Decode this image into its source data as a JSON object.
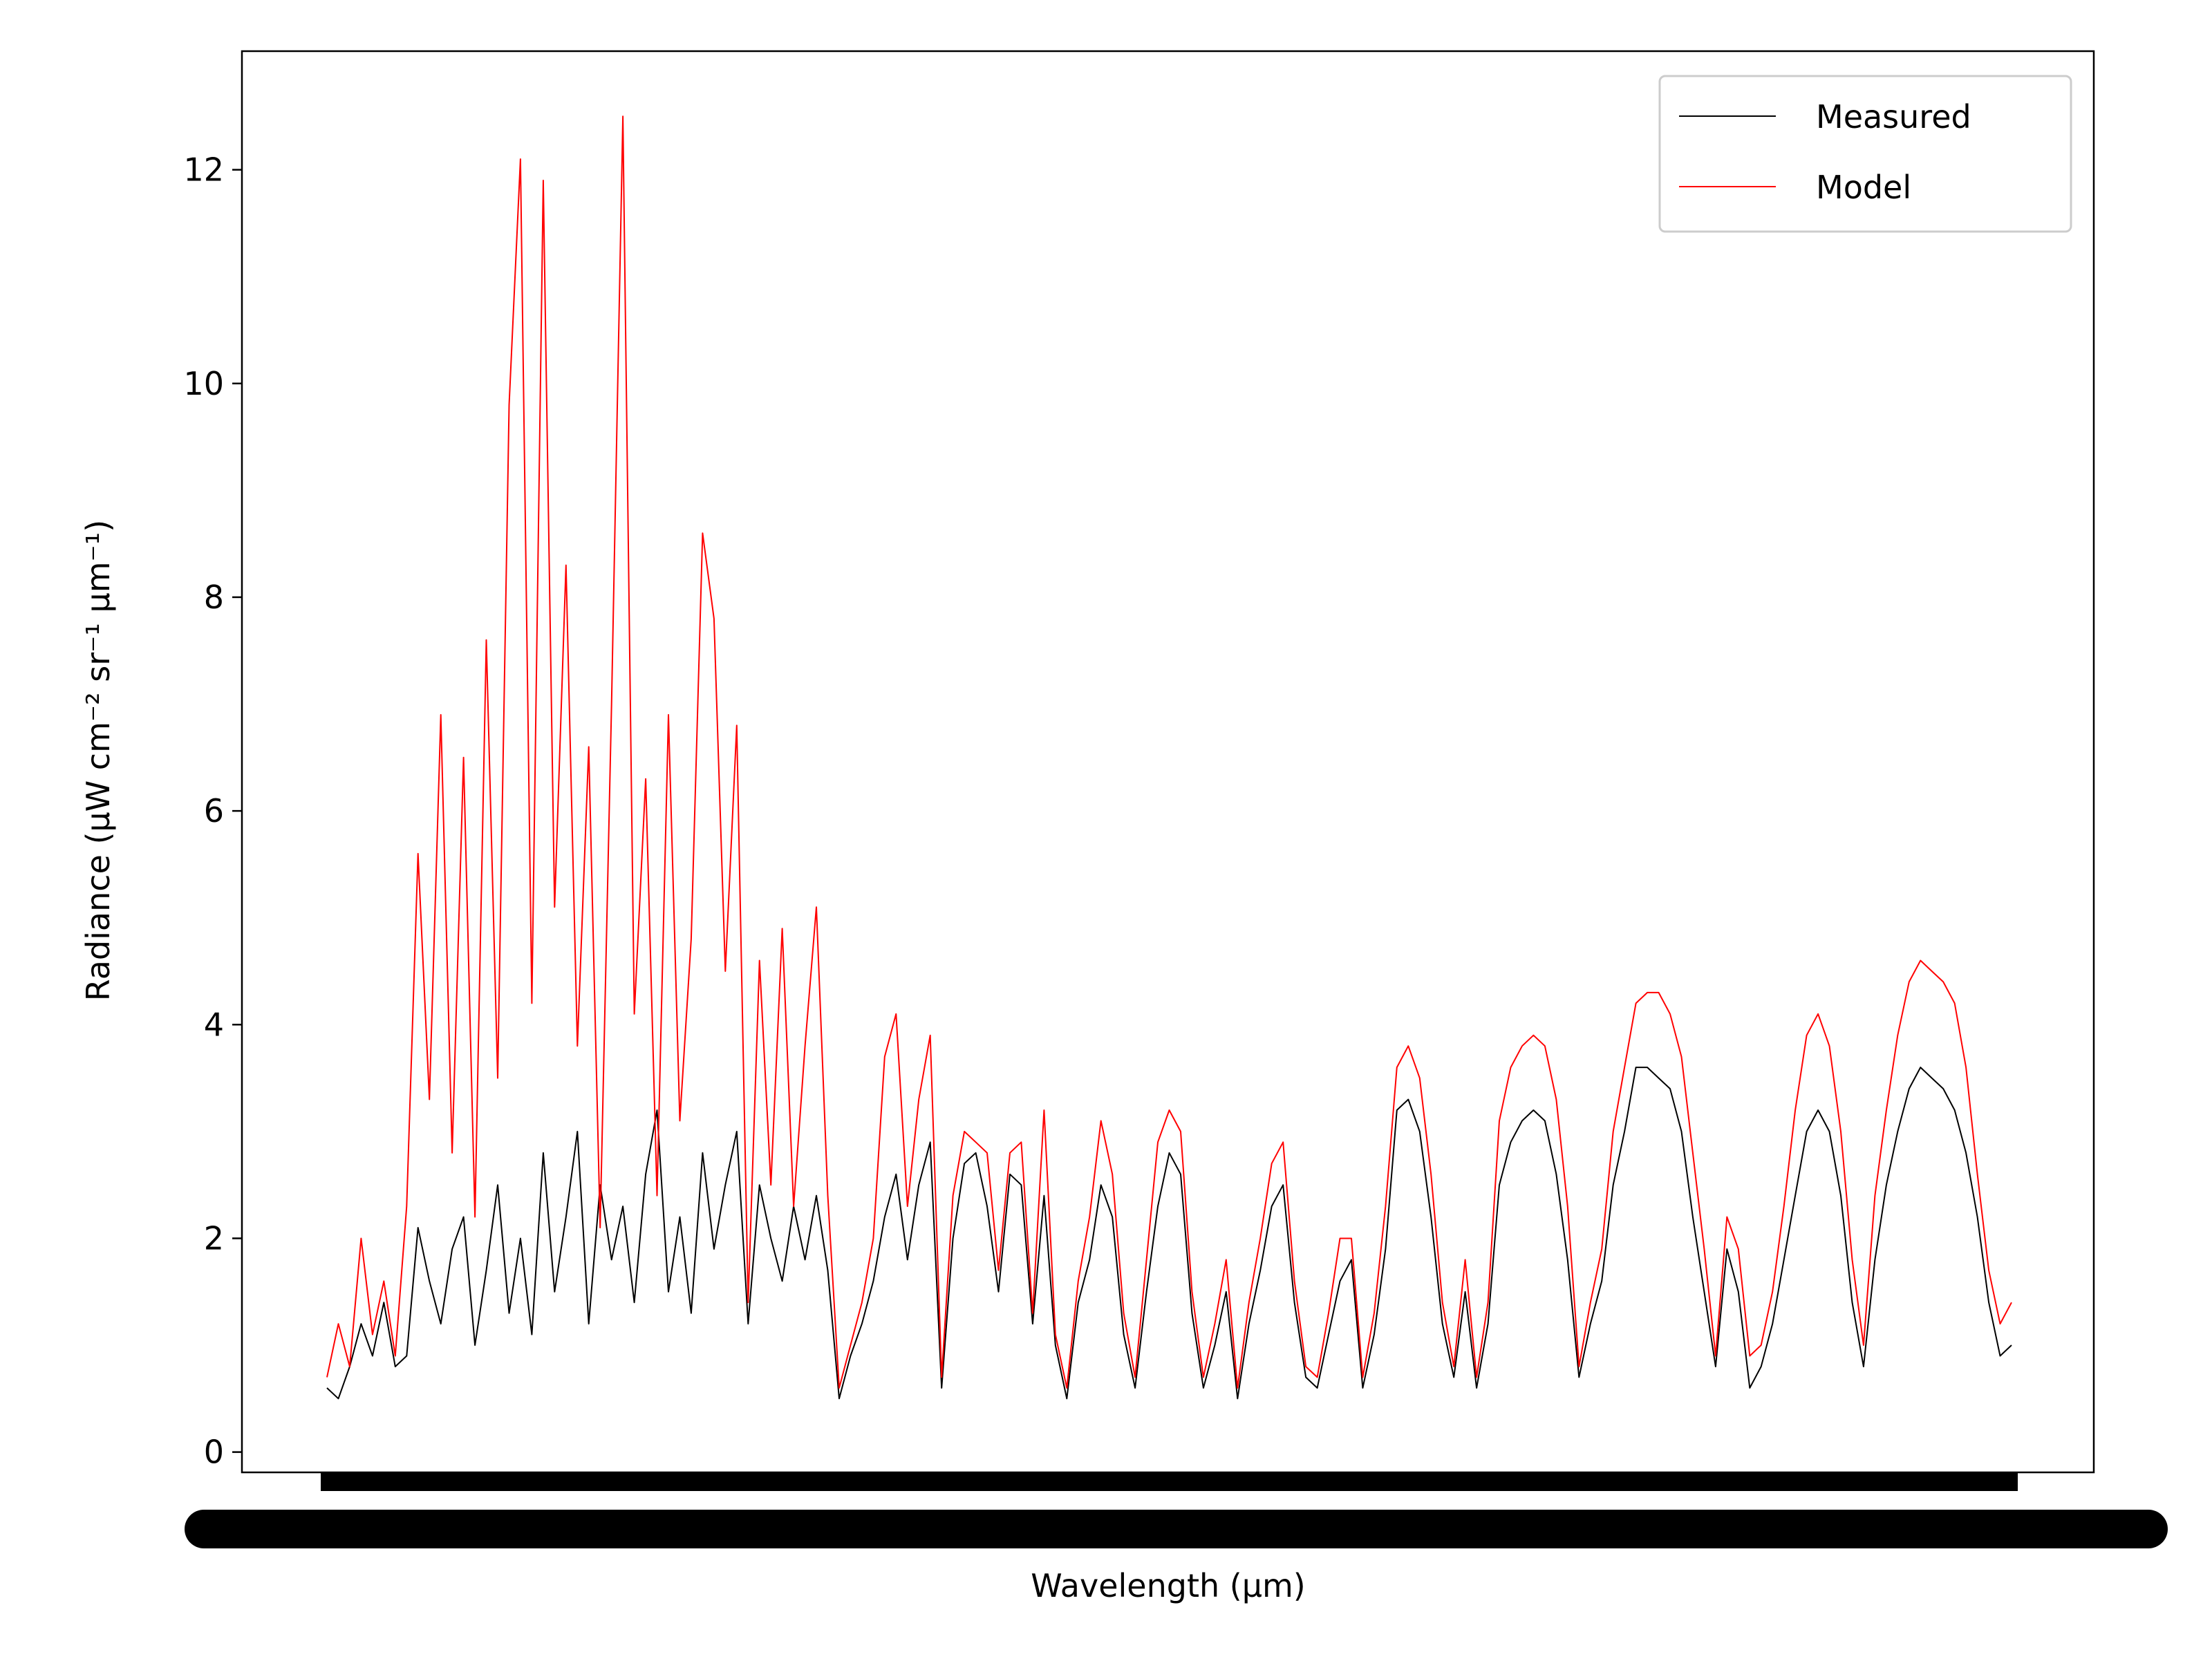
{
  "chart_data": {
    "type": "line",
    "xlabel": "Wavelength (µm)",
    "ylabel": "Radiance (µW cm⁻² sr⁻¹ µm⁻¹)",
    "categories": [
      null,
      null,
      null,
      null,
      null,
      null,
      null,
      null,
      null,
      null,
      null,
      null,
      null,
      null,
      null,
      null,
      null,
      null,
      null,
      null,
      null,
      null,
      null,
      null,
      null,
      null,
      null,
      null,
      null,
      null,
      null,
      null,
      null,
      null,
      null,
      null,
      null,
      null,
      null,
      null,
      null,
      null,
      null,
      null,
      null,
      null,
      null,
      null,
      null,
      null,
      null,
      null,
      null,
      null,
      null,
      null,
      null,
      null,
      null,
      null,
      null,
      null,
      null,
      null,
      null,
      null,
      null,
      null,
      null,
      null,
      null,
      null,
      null,
      null,
      null,
      null,
      null,
      null,
      null,
      null,
      null,
      null,
      null,
      null,
      null,
      null,
      null,
      null,
      null,
      null,
      null,
      null,
      null,
      null,
      null,
      null,
      null,
      null,
      null,
      null,
      null,
      null,
      null,
      null,
      null,
      null,
      null,
      null,
      null,
      null,
      null,
      null,
      null,
      null,
      null,
      null,
      null,
      null,
      null,
      null,
      null,
      null,
      null,
      null,
      null,
      null,
      null,
      null,
      null,
      null,
      null,
      null,
      null,
      null,
      null,
      null,
      null,
      null,
      null,
      null,
      null,
      null,
      null,
      null,
      null,
      null,
      null,
      null,
      null
    ],
    "series": [
      {
        "name": "Measured",
        "color": "#000000",
        "values": [
          0.6,
          0.5,
          0.8,
          1.2,
          0.9,
          1.4,
          0.8,
          0.9,
          2.1,
          1.6,
          1.2,
          1.9,
          2.2,
          1.0,
          1.7,
          2.5,
          1.3,
          2.0,
          1.1,
          2.8,
          1.5,
          2.2,
          3.0,
          1.2,
          2.5,
          1.8,
          2.3,
          1.4,
          2.6,
          3.2,
          1.5,
          2.2,
          1.3,
          2.8,
          1.9,
          2.5,
          3.0,
          1.2,
          2.5,
          2.0,
          1.6,
          2.3,
          1.8,
          2.4,
          1.7,
          0.5,
          0.9,
          1.2,
          1.6,
          2.2,
          2.6,
          1.8,
          2.5,
          2.9,
          0.6,
          2.0,
          2.7,
          2.8,
          2.3,
          1.5,
          2.6,
          2.5,
          1.2,
          2.4,
          1.0,
          0.5,
          1.4,
          1.8,
          2.5,
          2.2,
          1.1,
          0.6,
          1.5,
          2.3,
          2.8,
          2.6,
          1.3,
          0.6,
          1.0,
          1.5,
          0.5,
          1.2,
          1.7,
          2.3,
          2.5,
          1.4,
          0.7,
          0.6,
          1.1,
          1.6,
          1.8,
          0.6,
          1.1,
          1.9,
          3.2,
          3.3,
          3.0,
          2.2,
          1.2,
          0.7,
          1.5,
          0.6,
          1.2,
          2.5,
          2.9,
          3.1,
          3.2,
          3.1,
          2.6,
          1.8,
          0.7,
          1.2,
          1.6,
          2.5,
          3.0,
          3.6,
          3.6,
          3.5,
          3.4,
          3.0,
          2.2,
          1.5,
          0.8,
          1.9,
          1.5,
          0.6,
          0.8,
          1.2,
          1.8,
          2.4,
          3.0,
          3.2,
          3.0,
          2.4,
          1.4,
          0.8,
          1.8,
          2.5,
          3.0,
          3.4,
          3.6,
          3.5,
          3.4,
          3.2,
          2.8,
          2.2,
          1.4,
          0.9,
          1.0
        ]
      },
      {
        "name": "Model",
        "color": "#ff0000",
        "values": [
          0.7,
          1.2,
          0.8,
          2.0,
          1.1,
          1.6,
          0.9,
          2.3,
          5.6,
          3.3,
          6.9,
          2.8,
          6.5,
          2.2,
          7.6,
          3.5,
          9.8,
          12.1,
          4.2,
          11.9,
          5.1,
          8.3,
          3.8,
          6.6,
          2.1,
          7.0,
          12.5,
          4.1,
          6.3,
          2.4,
          6.9,
          3.1,
          4.8,
          8.6,
          7.8,
          4.5,
          6.8,
          1.4,
          4.6,
          2.5,
          4.9,
          2.3,
          3.8,
          5.1,
          2.4,
          0.6,
          1.0,
          1.4,
          2.0,
          3.7,
          4.1,
          2.3,
          3.3,
          3.9,
          0.7,
          2.4,
          3.0,
          2.9,
          2.8,
          1.7,
          2.8,
          2.9,
          1.3,
          3.2,
          1.1,
          0.6,
          1.6,
          2.2,
          3.1,
          2.6,
          1.3,
          0.7,
          1.8,
          2.9,
          3.2,
          3.0,
          1.5,
          0.7,
          1.2,
          1.8,
          0.6,
          1.4,
          2.0,
          2.7,
          2.9,
          1.6,
          0.8,
          0.7,
          1.3,
          2.0,
          2.0,
          0.7,
          1.3,
          2.3,
          3.6,
          3.8,
          3.5,
          2.6,
          1.4,
          0.8,
          1.8,
          0.7,
          1.4,
          3.1,
          3.6,
          3.8,
          3.9,
          3.8,
          3.3,
          2.3,
          0.8,
          1.4,
          1.9,
          3.0,
          3.6,
          4.2,
          4.3,
          4.3,
          4.1,
          3.7,
          2.8,
          1.9,
          0.9,
          2.2,
          1.9,
          0.9,
          1.0,
          1.5,
          2.3,
          3.2,
          3.9,
          4.1,
          3.8,
          3.0,
          1.8,
          1.0,
          2.4,
          3.2,
          3.9,
          4.4,
          4.6,
          4.5,
          4.4,
          4.2,
          3.6,
          2.6,
          1.7,
          1.2,
          1.4
        ]
      }
    ],
    "ylim": [
      -0.19,
      13.11
    ],
    "yticks": [
      0,
      2,
      4,
      6,
      8,
      10,
      12
    ],
    "legend": "upper right"
  }
}
